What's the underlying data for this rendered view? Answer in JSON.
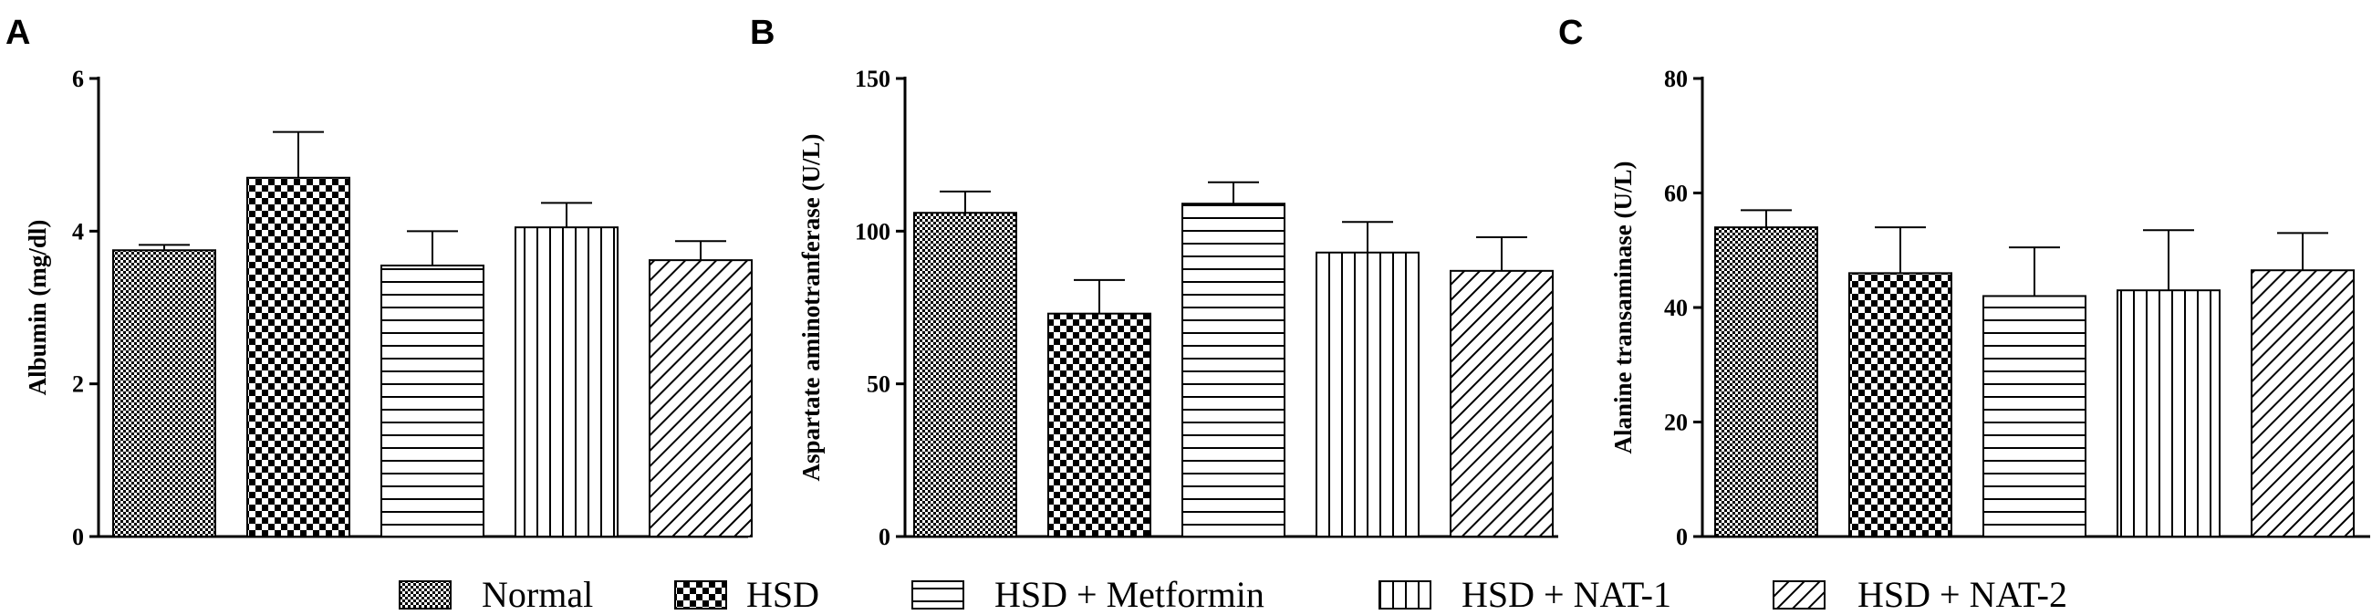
{
  "legend": [
    "Normal",
    "HSD",
    "HSD + Metformin",
    "HSD + NAT-1",
    "HSD + NAT-2"
  ],
  "patterns": [
    "dense-checker",
    "large-checker",
    "horizontal-lines",
    "vertical-lines",
    "diagonal-lines"
  ],
  "colors": {
    "ink": "#000000",
    "background": "#ffffff"
  },
  "chart_data": [
    {
      "type": "bar",
      "panel": "A",
      "categories": [
        "Normal",
        "HSD",
        "HSD + Metformin",
        "HSD + NAT-1",
        "HSD + NAT-2"
      ],
      "values": [
        3.75,
        4.7,
        3.55,
        4.05,
        3.62
      ],
      "errors": [
        0.07,
        0.6,
        0.45,
        0.32,
        0.25
      ],
      "ylabel": "Albumin (mg/dl)",
      "ylim": [
        0,
        6
      ],
      "yticks": [
        0,
        2,
        4,
        6
      ]
    },
    {
      "type": "bar",
      "panel": "B",
      "categories": [
        "Normal",
        "HSD",
        "HSD + Metformin",
        "HSD + NAT-1",
        "HSD + NAT-2"
      ],
      "values": [
        106,
        73,
        109,
        93,
        87
      ],
      "errors": [
        7,
        11,
        7,
        10,
        11
      ],
      "ylabel": "Aspartate aminotranferase (U/L)",
      "ylim": [
        0,
        150
      ],
      "yticks": [
        0,
        50,
        100,
        150
      ]
    },
    {
      "type": "bar",
      "panel": "C",
      "categories": [
        "Normal",
        "HSD",
        "HSD + Metformin",
        "HSD + NAT-1",
        "HSD + NAT-2"
      ],
      "values": [
        54,
        46,
        42,
        43,
        46.5
      ],
      "errors": [
        3,
        8,
        8.5,
        10.5,
        6.5
      ],
      "ylabel": "Alanine transaminase (U/L)",
      "ylim": [
        0,
        80
      ],
      "yticks": [
        0,
        20,
        40,
        60,
        80
      ]
    }
  ]
}
